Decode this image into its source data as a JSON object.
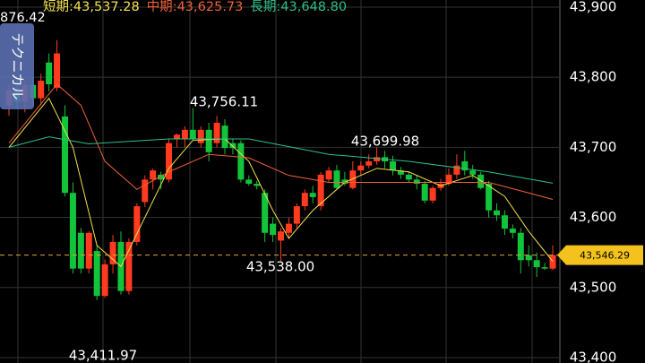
{
  "chart_data": {
    "type": "candlestick",
    "ohlc": [
      [
        43760,
        43790,
        43745,
        43782
      ],
      [
        43782,
        43800,
        43755,
        43765
      ],
      [
        43765,
        43795,
        43750,
        43789
      ],
      [
        43789,
        43800,
        43760,
        43770
      ],
      [
        43770,
        43805,
        43760,
        43795
      ],
      [
        43821,
        43834,
        43780,
        43790
      ],
      [
        43785,
        43853,
        43780,
        43834
      ],
      [
        43744,
        43760,
        43630,
        43635
      ],
      [
        43635,
        43650,
        43520,
        43527
      ],
      [
        43578,
        43585,
        43520,
        43527
      ],
      [
        43527,
        43580,
        43520,
        43578
      ],
      [
        43552,
        43560,
        43482,
        43488
      ],
      [
        43488,
        43540,
        43485,
        43533
      ],
      [
        43533,
        43575,
        43520,
        43565
      ],
      [
        43565,
        43580,
        43490,
        43495
      ],
      [
        43495,
        43570,
        43490,
        43565
      ],
      [
        43565,
        43620,
        43560,
        43616
      ],
      [
        43622,
        43660,
        43615,
        43654
      ],
      [
        43654,
        43670,
        43640,
        43667
      ],
      [
        43661,
        43665,
        43640,
        43654
      ],
      [
        43654,
        43712,
        43650,
        43706
      ],
      [
        43712,
        43720,
        43700,
        43718
      ],
      [
        43712,
        43730,
        43700,
        43725
      ],
      [
        43725,
        43756.11,
        43710,
        43712
      ],
      [
        43706,
        43730,
        43700,
        43725
      ],
      [
        43725,
        43735,
        43680,
        43693
      ],
      [
        43706,
        43745,
        43700,
        43735
      ],
      [
        43731,
        43740,
        43690,
        43699
      ],
      [
        43706,
        43712,
        43690,
        43699
      ],
      [
        43706,
        43710,
        43650,
        43654
      ],
      [
        43654,
        43660,
        43645,
        43648
      ],
      [
        43648,
        43652,
        43640,
        43645
      ],
      [
        43635,
        43640,
        43565,
        43578
      ],
      [
        43591,
        43600,
        43565,
        43575
      ],
      [
        43567,
        43585,
        43538,
        43580
      ],
      [
        43578,
        43600,
        43570,
        43591
      ],
      [
        43591,
        43620,
        43585,
        43616
      ],
      [
        43616,
        43640,
        43610,
        43635
      ],
      [
        43635,
        43645,
        43620,
        43629
      ],
      [
        43616,
        43665,
        43610,
        43661
      ],
      [
        43654,
        43672,
        43650,
        43667
      ],
      [
        43667,
        43675,
        43640,
        43642
      ],
      [
        43654,
        43665,
        43645,
        43648
      ],
      [
        43642,
        43680,
        43640,
        43667
      ],
      [
        43667,
        43680,
        43660,
        43674
      ],
      [
        43674,
        43690,
        43670,
        43680
      ],
      [
        43680,
        43699.98,
        43675,
        43686
      ],
      [
        43686,
        43695,
        43670,
        43680
      ],
      [
        43680,
        43688,
        43660,
        43667
      ],
      [
        43667,
        43672,
        43655,
        43661
      ],
      [
        43661,
        43665,
        43650,
        43654
      ],
      [
        43654,
        43660,
        43640,
        43648
      ],
      [
        43648,
        43652,
        43620,
        43624
      ],
      [
        43624,
        43645,
        43620,
        43642
      ],
      [
        43642,
        43655,
        43638,
        43648
      ],
      [
        43648,
        43670,
        43645,
        43661
      ],
      [
        43661,
        43690,
        43655,
        43674
      ],
      [
        43680,
        43695,
        43660,
        43667
      ],
      [
        43667,
        43675,
        43655,
        43661
      ],
      [
        43661,
        43665,
        43640,
        43642
      ],
      [
        43648,
        43652,
        43600,
        43610
      ],
      [
        43610,
        43620,
        43595,
        43603
      ],
      [
        43603,
        43610,
        43575,
        43584
      ],
      [
        43584,
        43590,
        43570,
        43578
      ],
      [
        43578,
        43585,
        43520,
        43539
      ],
      [
        43546,
        43560,
        43530,
        43539
      ],
      [
        43539,
        43550,
        43515,
        43529
      ],
      [
        43529,
        43535,
        43525,
        43527
      ],
      [
        43527,
        43560,
        43525,
        43546.29
      ]
    ],
    "up_color": "#ff3b1f",
    "down_color": "#12c43a",
    "series": [
      {
        "name": "短期:",
        "value_label": "43,537.28",
        "color": "#f2e14b",
        "x": [
          0,
          5,
          8,
          11,
          14,
          17,
          20,
          23,
          27,
          30,
          33,
          35,
          38,
          42,
          46,
          50,
          54,
          58,
          62,
          65,
          68
        ],
        "values": [
          43700,
          43770,
          43700,
          43560,
          43530,
          43600,
          43670,
          43710,
          43712,
          43680,
          43610,
          43570,
          43610,
          43650,
          43670,
          43665,
          43645,
          43660,
          43630,
          43580,
          43537.28
        ]
      },
      {
        "name": "中期:",
        "value_label": "43,625.73",
        "color": "#f0603a",
        "x": [
          0,
          6,
          9,
          12,
          16,
          20,
          25,
          30,
          35,
          40,
          45,
          50,
          55,
          60,
          65,
          68
        ],
        "values": [
          43706,
          43790,
          43760,
          43680,
          43640,
          43665,
          43690,
          43685,
          43660,
          43650,
          43650,
          43650,
          43650,
          43650,
          43635,
          43625.73
        ]
      },
      {
        "name": "長期:",
        "value_label": "43,648.80",
        "color": "#2fbf8a",
        "x": [
          0,
          5,
          10,
          20,
          30,
          40,
          50,
          60,
          68
        ],
        "values": [
          43700,
          43715,
          43705,
          43712,
          43712,
          43690,
          43680,
          43665,
          43648.8
        ]
      }
    ],
    "ylim": [
      43392.3,
      43910.2
    ],
    "yticks": [
      {
        "value": 43400,
        "label": "43,400"
      },
      {
        "value": 43500,
        "label": "43,500"
      },
      {
        "value": 43600,
        "label": "43,600"
      },
      {
        "value": 43700,
        "label": "43,700"
      },
      {
        "value": 43800,
        "label": "43,800"
      },
      {
        "value": 43900,
        "label": "43,900"
      }
    ],
    "last_price": 43546.29,
    "last_label": "43,546.29",
    "annotations": [
      "43,756.11",
      "43,538.00",
      "43,699.98",
      "43,411.97"
    ],
    "top_label": "876.42",
    "tab": "テクニカル"
  }
}
